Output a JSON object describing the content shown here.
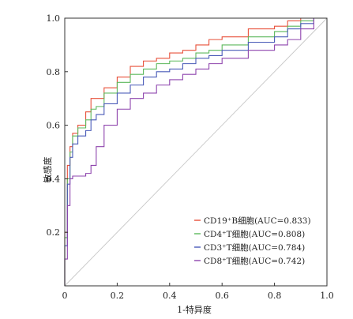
{
  "chart_data": {
    "type": "line",
    "title": "",
    "xlabel": "1-特异度",
    "ylabel": "敏感度",
    "xlim": [
      0,
      1
    ],
    "ylim": [
      0,
      1
    ],
    "x_ticks": [
      "0",
      "0.2",
      "0.4",
      "0.6",
      "0.8",
      "1.0"
    ],
    "y_ticks": [
      "0.2",
      "0.4",
      "0.6",
      "0.8",
      "1.0"
    ],
    "grid": false,
    "legend_position": "bottom-right",
    "reference_line": {
      "x": [
        0,
        1
      ],
      "y": [
        0,
        1
      ],
      "color": "#c8c8c8"
    },
    "series": [
      {
        "name": "CD19⁺B细胞(AUC=0.833)",
        "color": "#e8503a",
        "x": [
          0,
          0.01,
          0.02,
          0.03,
          0.05,
          0.08,
          0.1,
          0.12,
          0.15,
          0.2,
          0.25,
          0.3,
          0.35,
          0.4,
          0.45,
          0.5,
          0.55,
          0.6,
          0.7,
          0.8,
          0.85,
          0.9,
          0.95,
          1.0
        ],
        "y": [
          0,
          0.2,
          0.45,
          0.52,
          0.57,
          0.6,
          0.65,
          0.7,
          0.7,
          0.74,
          0.78,
          0.82,
          0.84,
          0.85,
          0.87,
          0.88,
          0.9,
          0.92,
          0.93,
          0.96,
          0.97,
          0.99,
          1.0,
          1.0
        ]
      },
      {
        "name": "CD4⁺T细胞(AUC=0.808)",
        "color": "#5cb85c",
        "x": [
          0,
          0.01,
          0.02,
          0.03,
          0.05,
          0.08,
          0.1,
          0.12,
          0.15,
          0.2,
          0.25,
          0.3,
          0.35,
          0.4,
          0.45,
          0.5,
          0.55,
          0.6,
          0.7,
          0.8,
          0.85,
          0.9,
          0.95,
          1.0
        ],
        "y": [
          0,
          0.18,
          0.4,
          0.5,
          0.56,
          0.59,
          0.62,
          0.66,
          0.67,
          0.72,
          0.76,
          0.79,
          0.81,
          0.83,
          0.84,
          0.85,
          0.87,
          0.88,
          0.9,
          0.93,
          0.95,
          0.97,
          0.99,
          1.0
        ]
      },
      {
        "name": "CD3⁺T细胞(AUC=0.784)",
        "color": "#4a5bb8",
        "x": [
          0,
          0.01,
          0.02,
          0.03,
          0.05,
          0.08,
          0.1,
          0.12,
          0.15,
          0.2,
          0.25,
          0.3,
          0.35,
          0.4,
          0.45,
          0.5,
          0.55,
          0.6,
          0.7,
          0.8,
          0.85,
          0.9,
          0.95,
          1.0
        ],
        "y": [
          0,
          0.15,
          0.38,
          0.48,
          0.53,
          0.56,
          0.58,
          0.62,
          0.64,
          0.68,
          0.72,
          0.75,
          0.78,
          0.8,
          0.81,
          0.83,
          0.85,
          0.86,
          0.88,
          0.91,
          0.93,
          0.96,
          0.98,
          1.0
        ]
      },
      {
        "name": "CD8⁺T细胞(AUC=0.742)",
        "color": "#8e44ad",
        "x": [
          0,
          0.01,
          0.02,
          0.03,
          0.05,
          0.08,
          0.1,
          0.12,
          0.15,
          0.2,
          0.25,
          0.3,
          0.35,
          0.4,
          0.45,
          0.5,
          0.55,
          0.6,
          0.7,
          0.8,
          0.85,
          0.9,
          0.95,
          1.0
        ],
        "y": [
          0,
          0.1,
          0.3,
          0.4,
          0.41,
          0.41,
          0.42,
          0.45,
          0.52,
          0.6,
          0.66,
          0.7,
          0.72,
          0.75,
          0.77,
          0.79,
          0.81,
          0.83,
          0.85,
          0.88,
          0.9,
          0.92,
          0.96,
          1.0
        ]
      }
    ]
  }
}
